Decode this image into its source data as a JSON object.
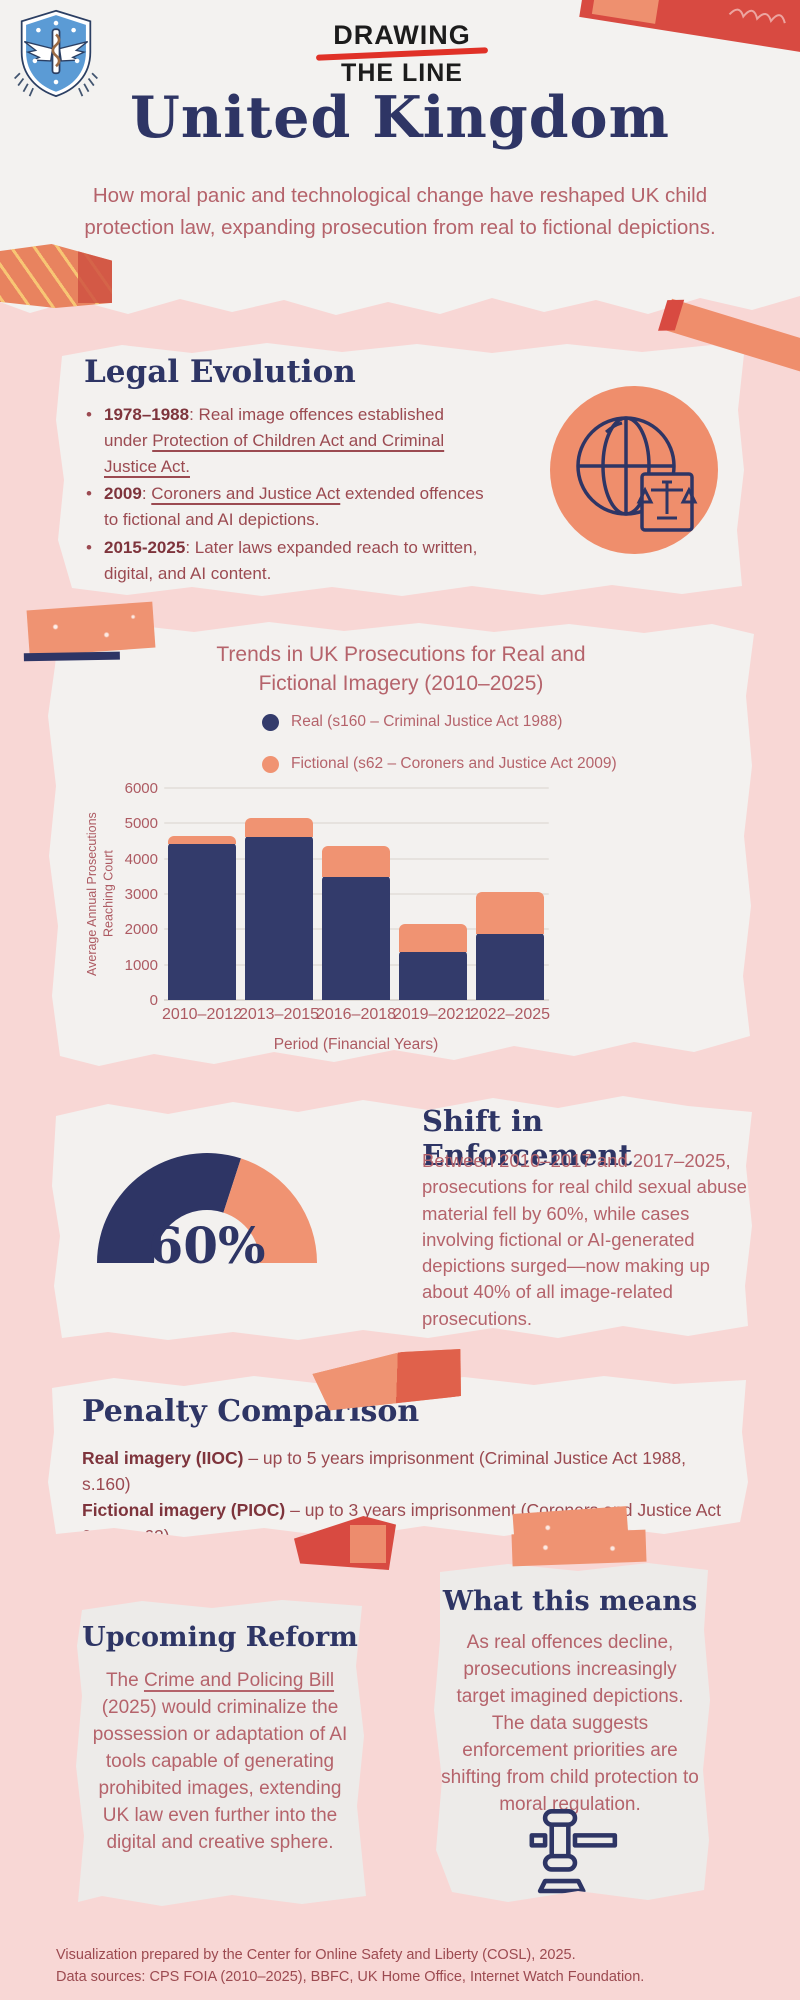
{
  "brand": {
    "line1": "DRAWING",
    "line2": "THE LINE"
  },
  "header": {
    "title": "United Kingdom",
    "subtitle": "How moral panic and technological change have reshaped UK child protection law, expanding prosecution from real to fictional depictions."
  },
  "legal_evolution": {
    "heading": "Legal Evolution",
    "bullets": [
      {
        "lead": "1978–1988",
        "pre": ": Real image offences established under ",
        "link": "Protection of Children Act and Criminal Justice Act.",
        "post": ""
      },
      {
        "lead": "2009",
        "pre": ": ",
        "link": "Coroners and Justice Act",
        "post": " extended offences to fictional and AI depictions."
      },
      {
        "lead": "2015-2025",
        "pre": ": Later laws expanded reach to written, digital, and AI content.",
        "link": "",
        "post": ""
      }
    ]
  },
  "shift": {
    "heading": "Shift in Enforcement",
    "gauge_label": "60%",
    "body": "Between 2010–2017 and 2017–2025, prosecutions for real child sexual abuse material fell by 60%, while cases involving fictional or AI-generated depictions surged—now making up about 40% of all image-related prosecutions."
  },
  "penalty": {
    "heading": "Penalty Comparison",
    "items": [
      {
        "lead": "Real imagery (IIOC)",
        "rest": " – up to 5 years imprisonment (Criminal Justice Act 1988, s.160)"
      },
      {
        "lead": "Fictional imagery (PIOC)",
        "rest": " – up to 3 years imprisonment (Coroners and Justice Act 2009, s.62)"
      }
    ]
  },
  "reform": {
    "heading": "Upcoming Reform",
    "pre": "The ",
    "link": "Crime and Policing Bill",
    "post": " (2025) would criminalize the possession or adaptation of AI tools capable of generating prohibited images, extending UK law even further into the digital and creative sphere."
  },
  "meaning": {
    "heading": "What this means",
    "body": "As real offences decline, prosecutions increasingly target imagined depictions. The data suggests enforcement priorities are shifting from child protection to moral regulation."
  },
  "footer": {
    "line1": "Visualization prepared by the Center for Online Safety and Liberty (COSL), 2025.",
    "line2": "Data sources: CPS FOIA (2010–2025), BBFC, UK Home Office, Internet Watch Foundation."
  },
  "chart_data": {
    "type": "bar",
    "stacked": true,
    "title": "Trends in UK Prosecutions for Real and Fictional Imagery (2010–2025)",
    "categories": [
      "2010–2012",
      "2013–2015",
      "2016–2018",
      "2019–2021",
      "2022–2025"
    ],
    "series": [
      {
        "name": "Real (s160 – Criminal Justice Act 1988)",
        "color": "#333b6b",
        "values": [
          4450,
          4650,
          3500,
          1400,
          1900
        ]
      },
      {
        "name": "Fictional (s62 – Coroners and Justice Act 2009)",
        "color": "#f09372",
        "values": [
          200,
          500,
          850,
          750,
          1150
        ]
      }
    ],
    "xlabel": "Period (Financial Years)",
    "ylabel": "Average Annual Prosecutions Reaching Court",
    "ylim": [
      0,
      6000
    ],
    "ytick_step": 1000,
    "grid": true,
    "legend_position": "top"
  },
  "gauge": {
    "percent": 60
  },
  "colors": {
    "page_pink": "#f8d7d5",
    "panel_offwhite": "#f3f1ef",
    "panel_gray": "#edebe9",
    "navy": "#2e3565",
    "salmon": "#f09372",
    "red_accent": "#d84a41",
    "rose_text": "#b5636b",
    "maroon_text": "#9b4a51",
    "maroon_bold": "#7e343c"
  }
}
